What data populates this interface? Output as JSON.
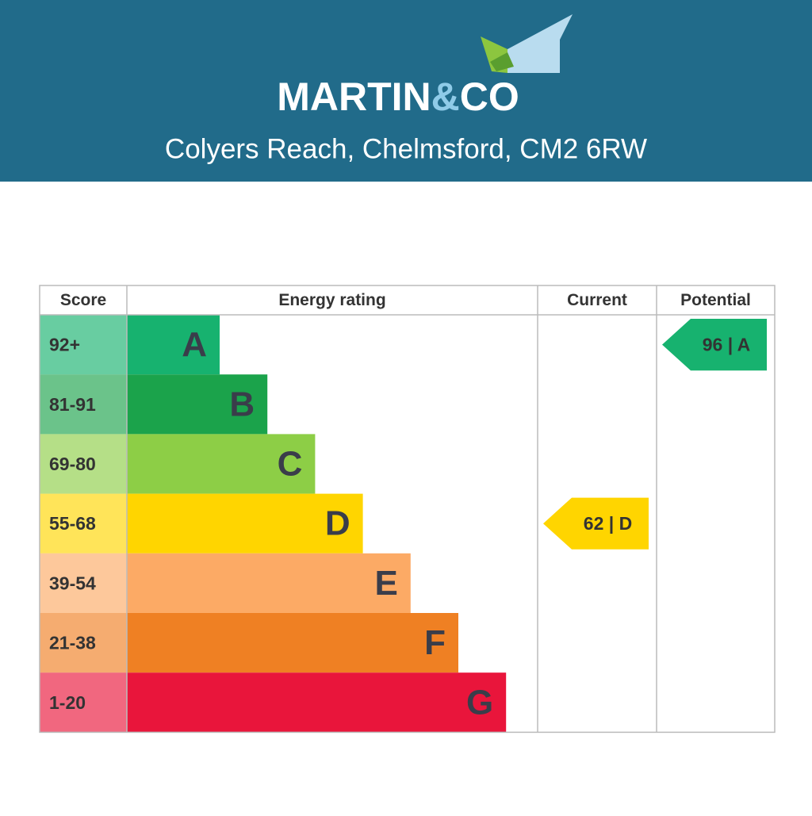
{
  "header": {
    "brand": [
      "MARTIN",
      "&",
      "CO"
    ],
    "address": "Colyers Reach, Chelmsford, CM2 6RW"
  },
  "table": {
    "headers": [
      "Score",
      "Energy rating",
      "Current",
      "Potential"
    ],
    "rows": [
      {
        "score": "92+",
        "letter": "A",
        "color": "#17b26f"
      },
      {
        "score": "81-91",
        "letter": "B",
        "color": "#1ba34b"
      },
      {
        "score": "69-80",
        "letter": "C",
        "color": "#8dce46"
      },
      {
        "score": "55-68",
        "letter": "D",
        "color": "#ffd500"
      },
      {
        "score": "39-54",
        "letter": "E",
        "color": "#fcaa65"
      },
      {
        "score": "21-38",
        "letter": "F",
        "color": "#ef8023"
      },
      {
        "score": "1-20",
        "letter": "G",
        "color": "#e9153b"
      }
    ],
    "current": "62 | D",
    "potential": "96 | A"
  }
}
